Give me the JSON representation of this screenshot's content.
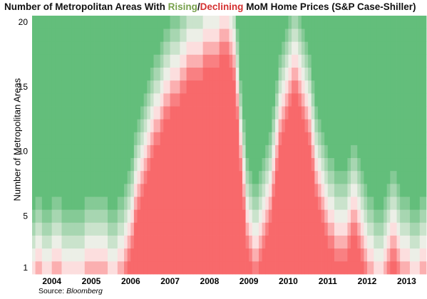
{
  "chart_data": {
    "type": "heatmap",
    "title": {
      "before": "Number of Metropolitan Areas With ",
      "rising": "Rising",
      "slash": "/",
      "declining": "Declining",
      "after": " MoM Home Prices (S&P Case-Shiller)"
    },
    "ylabel": "Number of Metropolitan Areas",
    "source_label": "Source:",
    "source_name": "Bloomberg",
    "y_ticks": [
      1,
      5,
      10,
      15,
      20
    ],
    "ylim": [
      1,
      20
    ],
    "x_ticks": [
      "2004",
      "2005",
      "2006",
      "2007",
      "2008",
      "2009",
      "2010",
      "2011",
      "2012",
      "2013"
    ],
    "year_start": 2004,
    "months": 120,
    "colors": {
      "rising": "#63be7b",
      "neutral": "#fdf5f5",
      "declining": "#f8696b"
    },
    "series": [
      {
        "name": "Declining",
        "unit": "metro areas",
        "values": [
          1,
          2,
          2,
          1,
          1,
          1,
          2,
          2,
          2,
          1,
          1,
          1,
          1,
          1,
          1,
          1,
          2,
          2,
          2,
          2,
          2,
          2,
          2,
          1,
          1,
          1,
          2,
          2,
          3,
          4,
          5,
          7,
          8,
          9,
          10,
          11,
          12,
          13,
          13,
          14,
          15,
          15,
          16,
          16,
          16,
          17,
          17,
          18,
          18,
          18,
          18,
          18,
          19,
          19,
          19,
          19,
          19,
          20,
          20,
          20,
          19,
          18,
          15,
          11,
          8,
          5,
          4,
          3,
          3,
          4,
          5,
          6,
          7,
          9,
          11,
          13,
          14,
          15,
          16,
          17,
          17,
          16,
          15,
          14,
          13,
          11,
          9,
          8,
          7,
          6,
          5,
          5,
          4,
          4,
          4,
          4,
          5,
          6,
          6,
          5,
          4,
          3,
          2,
          2,
          1,
          1,
          1,
          2,
          3,
          4,
          4,
          3,
          2,
          2,
          2,
          1,
          1,
          1,
          2,
          2
        ]
      }
    ]
  }
}
